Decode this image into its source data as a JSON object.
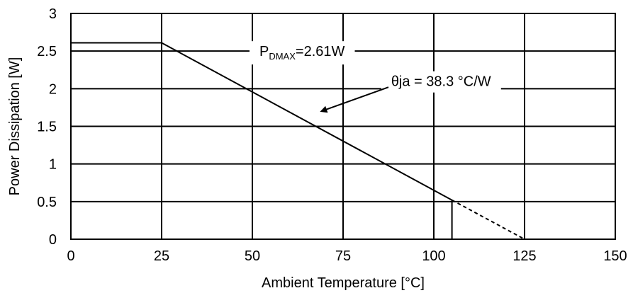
{
  "chart_data": {
    "type": "line",
    "title": "",
    "xlabel": "Ambient Temperature [°C]",
    "ylabel": "Power Dissipation [W]",
    "xlim": [
      0,
      150
    ],
    "ylim": [
      0,
      3
    ],
    "x_ticks": [
      0,
      25,
      50,
      75,
      100,
      125,
      150
    ],
    "y_ticks": [
      0,
      0.5,
      1,
      1.5,
      2,
      2.5,
      3
    ],
    "x_tick_labels": [
      "0",
      "25",
      "50",
      "75",
      "100",
      "125",
      "150"
    ],
    "y_tick_labels": [
      "0",
      "0.5",
      "1",
      "1.5",
      "2",
      "2.5",
      "3"
    ],
    "extra_x_gridlines": [
      100,
      125
    ],
    "grid": true,
    "legend": "none",
    "series": [
      {
        "style": "solid",
        "x": [
          0,
          25,
          105
        ],
        "y": [
          2.61,
          2.61,
          0.52
        ]
      },
      {
        "style": "dashed",
        "x": [
          105,
          125
        ],
        "y": [
          0.52,
          0
        ]
      }
    ],
    "vertical_markers": [
      {
        "x": 105,
        "y_top": 0.52
      }
    ],
    "annotations": {
      "pdmax": {
        "prefix": "P",
        "subscript": "DMAX",
        "suffix": "=2.61W",
        "anchor_x": 50,
        "anchor_y": 2.5
      },
      "theta": {
        "text": "θja = 38.3 °C/W",
        "anchor_x": 102,
        "anchor_y": 2.1,
        "arrow_from": [
          87.5,
          2.02
        ],
        "arrow_to": [
          69,
          1.7
        ]
      }
    },
    "colors": {
      "line": "#000000",
      "grid": "#000000",
      "background": "#ffffff"
    }
  }
}
